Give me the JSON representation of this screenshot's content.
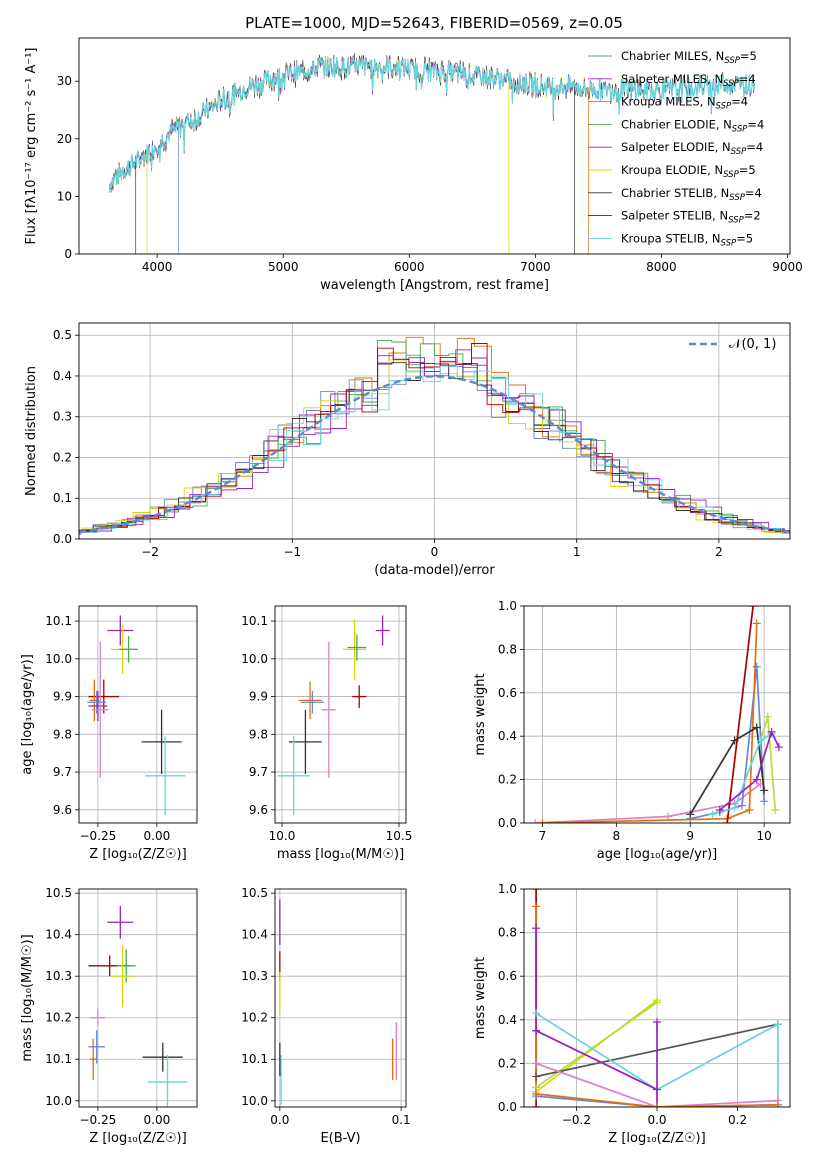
{
  "title": "PLATE=1000, MJD=52643, FIBERID=0569, z=0.05",
  "colors": {
    "Chabrier MILES": "#6688dd",
    "Salpeter MILES": "#9922bb",
    "Kroupa MILES": "#e07010",
    "Chabrier ELODIE": "#44aa44",
    "Salpeter ELODIE": "#9922bb",
    "Kroupa ELODIE": "#d8d800",
    "Chabrier STELIB": "#333333",
    "Salpeter STELIB": "#aa0000",
    "Kroupa STELIB": "#66d4dd",
    "pink": "#e080c0",
    "olive": "#b8d84a",
    "gray": "#555555",
    "normal": "#5b87d6"
  },
  "chart_data": [
    {
      "id": "spectrum",
      "type": "line",
      "title": "PLATE=1000, MJD=52643, FIBERID=0569, z=0.05",
      "xlabel": "wavelength [Angstrom, rest frame]",
      "ylabel": "Flux [fλ10⁻¹⁷ erg cm⁻² s⁻¹ A⁻¹]",
      "xlim": [
        3380,
        9020
      ],
      "ylim": [
        0,
        37.5
      ],
      "xticks": [
        "4000",
        "5000",
        "6000",
        "7000",
        "8000",
        "9000"
      ],
      "yticks": [
        "0",
        "10",
        "20",
        "30"
      ],
      "legend_position": "upper right",
      "series": [
        {
          "name": "Chabrier MILES",
          "nssp": "5"
        },
        {
          "name": "Salpeter MILES",
          "nssp": "4"
        },
        {
          "name": "Kroupa MILES",
          "nssp": "4"
        },
        {
          "name": "Chabrier ELODIE",
          "nssp": "4"
        },
        {
          "name": "Salpeter ELODIE",
          "nssp": "4"
        },
        {
          "name": "Kroupa ELODIE",
          "nssp": "5"
        },
        {
          "name": "Chabrier STELIB",
          "nssp": "4"
        },
        {
          "name": "Salpeter STELIB",
          "nssp": "2"
        },
        {
          "name": "Kroupa STELIB",
          "nssp": "5"
        }
      ],
      "continuum": {
        "x": [
          3620,
          3700,
          3800,
          3900,
          4000,
          4100,
          4200,
          4300,
          4400,
          4500,
          4600,
          4700,
          4800,
          4900,
          5000,
          5100,
          5200,
          5300,
          5500,
          5700,
          5900,
          6100,
          6300,
          6500,
          6700,
          6900,
          7100,
          7300,
          7500,
          7700,
          7900,
          8100,
          8300,
          8500,
          8700
        ],
        "y": [
          12,
          14,
          15.5,
          17,
          19,
          21,
          22.5,
          23.5,
          25,
          26.5,
          27.5,
          29,
          29.5,
          30.5,
          31,
          31.5,
          32,
          32.5,
          32.5,
          32.5,
          32.5,
          32,
          31.5,
          31,
          30.5,
          29.5,
          29,
          29,
          28.5,
          28.5,
          28.5,
          28.5,
          29,
          29.5,
          29.5
        ]
      }
    },
    {
      "id": "residuals",
      "type": "line",
      "xlabel": "(data-model)/error",
      "ylabel": "Normed distribution",
      "xlim": [
        -2.5,
        2.5
      ],
      "ylim": [
        0,
        0.53
      ],
      "xticks": [
        "−2",
        "−1",
        "0",
        "1",
        "2"
      ],
      "yticks": [
        "0.0",
        "0.1",
        "0.2",
        "0.3",
        "0.4",
        "0.5"
      ],
      "legend": "𝒩(0, 1)",
      "series": [
        {
          "name": "Chabrier MILES",
          "peak": 0.43
        },
        {
          "name": "Salpeter MILES",
          "peak": 0.46
        },
        {
          "name": "Kroupa MILES",
          "peak": 0.5
        },
        {
          "name": "Chabrier ELODIE",
          "peak": 0.49
        },
        {
          "name": "Salpeter ELODIE",
          "peak": 0.47
        },
        {
          "name": "Kroupa ELODIE",
          "peak": 0.45
        },
        {
          "name": "Chabrier STELIB",
          "peak": 0.44
        },
        {
          "name": "Salpeter STELIB",
          "peak": 0.48
        },
        {
          "name": "Kroupa STELIB",
          "peak": 0.42
        }
      ]
    },
    {
      "id": "age_vs_Z",
      "type": "scatter",
      "xlabel": "Z [log₁₀(Z/Z☉)]",
      "ylabel": "age  [log₁₀(age/yr)]",
      "xlim": [
        -0.33,
        0.17
      ],
      "ylim": [
        9.565,
        10.14
      ],
      "xticks": [
        "−0.25",
        "0.00"
      ],
      "yticks": [
        "9.6",
        "9.7",
        "9.8",
        "9.9",
        "10.0",
        "10.1"
      ],
      "points": [
        {
          "series": "Salpeter ELODIE",
          "x": -0.155,
          "y": 10.075,
          "xe": 0.055,
          "ye": 0.04
        },
        {
          "series": "Kroupa ELODIE",
          "x": -0.145,
          "y": 10.025,
          "xe": 0.05,
          "ye": 0.065
        },
        {
          "series": "Chabrier ELODIE",
          "x": -0.12,
          "y": 10.025,
          "xe": 0.04,
          "ye": 0.035
        },
        {
          "series": "Salpeter STELIB",
          "x": -0.225,
          "y": 9.9,
          "xe": 0.065,
          "ye": 0.045
        },
        {
          "series": "Kroupa MILES",
          "x": -0.265,
          "y": 9.89,
          "xe": 0.02,
          "ye": 0.055
        },
        {
          "series": "Chabrier MILES",
          "x": -0.255,
          "y": 9.885,
          "xe": 0.04,
          "ye": 0.03
        },
        {
          "series": "Salpeter MILES",
          "x": -0.25,
          "y": 9.875,
          "xe": 0.04,
          "ye": 0.04
        },
        {
          "series": "pink",
          "x": -0.24,
          "y": 9.865,
          "xe": 0.035,
          "ye": 0.18
        },
        {
          "series": "Chabrier STELIB",
          "x": 0.02,
          "y": 9.78,
          "xe": 0.085,
          "ye": 0.085
        },
        {
          "series": "Kroupa STELIB",
          "x": 0.035,
          "y": 9.69,
          "xe": 0.085,
          "ye": 0.105
        }
      ]
    },
    {
      "id": "age_vs_mass",
      "type": "scatter",
      "xlabel": "mass [log₁₀(M/M☉)]",
      "xlim": [
        9.97,
        10.53
      ],
      "ylim": [
        9.565,
        10.14
      ],
      "xticks": [
        "10.0",
        "10.5"
      ],
      "yticks": [
        "9.6",
        "9.7",
        "9.8",
        "9.9",
        "10.0",
        "10.1"
      ],
      "points": [
        {
          "series": "Salpeter ELODIE",
          "x": 10.43,
          "y": 10.075,
          "xe": 0.03,
          "ye": 0.04
        },
        {
          "series": "Kroupa ELODIE",
          "x": 10.31,
          "y": 10.025,
          "xe": 0.05,
          "ye": 0.08
        },
        {
          "series": "Chabrier ELODIE",
          "x": 10.32,
          "y": 10.03,
          "xe": 0.04,
          "ye": 0.035
        },
        {
          "series": "Salpeter STELIB",
          "x": 10.33,
          "y": 9.9,
          "xe": 0.03,
          "ye": 0.03
        },
        {
          "series": "Kroupa MILES",
          "x": 10.12,
          "y": 9.89,
          "xe": 0.05,
          "ye": 0.05
        },
        {
          "series": "Chabrier MILES",
          "x": 10.13,
          "y": 9.885,
          "xe": 0.05,
          "ye": 0.03
        },
        {
          "series": "pink",
          "x": 10.2,
          "y": 9.865,
          "xe": 0.03,
          "ye": 0.18
        },
        {
          "series": "Chabrier STELIB",
          "x": 10.1,
          "y": 9.78,
          "xe": 0.07,
          "ye": 0.085
        },
        {
          "series": "Kroupa STELIB",
          "x": 10.05,
          "y": 9.69,
          "xe": 0.07,
          "ye": 0.105
        }
      ]
    },
    {
      "id": "weight_vs_age",
      "type": "line",
      "xlabel": "age  [log₁₀(age/yr)]",
      "ylabel": "mass weight",
      "xlim": [
        6.75,
        10.35
      ],
      "ylim": [
        0,
        1
      ],
      "xticks": [
        "7",
        "8",
        "9",
        "10"
      ],
      "yticks": [
        "0.0",
        "0.2",
        "0.4",
        "0.6",
        "0.8",
        "1.0"
      ],
      "series": [
        {
          "name": "pink",
          "x": [
            6.9,
            8.7,
            9.6,
            9.95
          ],
          "y": [
            0.0,
            0.03,
            0.09,
            0.18
          ]
        },
        {
          "name": "Chabrier MILES",
          "x": [
            9.0,
            9.4,
            9.7,
            9.9,
            10.0
          ],
          "y": [
            0.02,
            0.05,
            0.08,
            0.72,
            0.1
          ]
        },
        {
          "name": "Kroupa MILES",
          "x": [
            7.0,
            9.5,
            9.8,
            9.9
          ],
          "y": [
            0.0,
            0.02,
            0.06,
            0.92
          ]
        },
        {
          "name": "Chabrier STELIB",
          "x": [
            9.0,
            9.6,
            9.9,
            10.0
          ],
          "y": [
            0.04,
            0.38,
            0.44,
            0.15
          ]
        },
        {
          "name": "Salpeter STELIB",
          "x": [
            9.5,
            9.85
          ],
          "y": [
            0.0,
            1.0
          ]
        },
        {
          "name": "olive",
          "x": [
            9.95,
            10.05,
            10.15
          ],
          "y": [
            0.38,
            0.49,
            0.06
          ]
        },
        {
          "name": "Kroupa STELIB",
          "x": [
            9.3,
            9.6,
            9.95,
            10.1
          ],
          "y": [
            0.04,
            0.07,
            0.38,
            0.41
          ]
        },
        {
          "name": "Salpeter MILES",
          "x": [
            9.4,
            9.9,
            10.1,
            10.2
          ],
          "y": [
            0.06,
            0.2,
            0.42,
            0.35
          ]
        }
      ]
    },
    {
      "id": "mass_vs_Z",
      "type": "scatter",
      "xlabel": "Z [log₁₀(Z/Z☉)]",
      "ylabel": "mass [log₁₀(M/M☉)]",
      "xlim": [
        -0.33,
        0.17
      ],
      "ylim": [
        9.985,
        10.51
      ],
      "xticks": [
        "−0.25",
        "0.00"
      ],
      "yticks": [
        "10.0",
        "10.1",
        "10.2",
        "10.3",
        "10.4",
        "10.5"
      ],
      "points": [
        {
          "series": "Salpeter ELODIE",
          "x": -0.155,
          "y": 10.43,
          "xe": 0.055,
          "ye": 0.04
        },
        {
          "series": "Salpeter STELIB",
          "x": -0.2,
          "y": 10.325,
          "xe": 0.09,
          "ye": 0.025
        },
        {
          "series": "Chabrier ELODIE",
          "x": -0.13,
          "y": 10.325,
          "xe": 0.04,
          "ye": 0.04
        },
        {
          "series": "Kroupa ELODIE",
          "x": -0.145,
          "y": 10.3,
          "xe": 0.05,
          "ye": 0.075
        },
        {
          "series": "pink",
          "x": -0.25,
          "y": 10.2,
          "xe": 0.03,
          "ye": 0.02
        },
        {
          "series": "Chabrier MILES",
          "x": -0.255,
          "y": 10.13,
          "xe": 0.035,
          "ye": 0.04
        },
        {
          "series": "Kroupa MILES",
          "x": -0.27,
          "y": 10.1,
          "xe": 0.015,
          "ye": 0.05
        },
        {
          "series": "Chabrier STELIB",
          "x": 0.025,
          "y": 10.105,
          "xe": 0.085,
          "ye": 0.035
        },
        {
          "series": "Kroupa STELIB",
          "x": 0.045,
          "y": 10.045,
          "xe": 0.085,
          "ye": 0.065
        }
      ]
    },
    {
      "id": "mass_vs_ebv",
      "type": "scatter",
      "xlabel": "E(B-V)",
      "xlim": [
        -0.004,
        0.104
      ],
      "ylim": [
        9.985,
        10.51
      ],
      "xticks": [
        "0.0",
        "0.1"
      ],
      "yticks": [
        "10.0",
        "10.1",
        "10.2",
        "10.3",
        "10.4",
        "10.5"
      ],
      "points": [
        {
          "series": "Salpeter ELODIE",
          "x": 0.0,
          "y": 10.43,
          "xe": 0.0,
          "ye": 0.055
        },
        {
          "series": "Salpeter STELIB",
          "x": 0.0,
          "y": 10.325,
          "xe": 0.0,
          "ye": 0.035
        },
        {
          "series": "Kroupa ELODIE",
          "x": 0.0,
          "y": 10.26,
          "xe": 0.0,
          "ye": 0.05
        },
        {
          "series": "Chabrier STELIB",
          "x": 0.0,
          "y": 10.1,
          "xe": 0.0,
          "ye": 0.04
        },
        {
          "series": "Kroupa STELIB",
          "x": 0.001,
          "y": 10.05,
          "xe": 0.0,
          "ye": 0.06
        },
        {
          "series": "Kroupa MILES",
          "x": 0.093,
          "y": 10.1,
          "xe": 0.0,
          "ye": 0.05
        },
        {
          "series": "pink",
          "x": 0.096,
          "y": 10.12,
          "xe": 0.0,
          "ye": 0.07
        }
      ]
    },
    {
      "id": "weight_vs_Z",
      "type": "line",
      "xlabel": "Z [log₁₀(Z/Z☉)]",
      "ylabel": "mass weight",
      "xlim": [
        -0.33,
        0.33
      ],
      "ylim": [
        0,
        1
      ],
      "xticks": [
        "−0.2",
        "0.0",
        "0.2"
      ],
      "yticks": [
        "0.0",
        "0.2",
        "0.4",
        "0.6",
        "0.8",
        "1.0"
      ],
      "series": [
        {
          "name": "Salpeter STELIB",
          "x": [
            -0.3,
            -0.3
          ],
          "y": [
            0.0,
            1.0
          ]
        },
        {
          "name": "Kroupa MILES",
          "x": [
            -0.3,
            -0.3
          ],
          "y": [
            0.06,
            0.92
          ]
        },
        {
          "name": "Salpeter MILES",
          "x": [
            -0.3,
            -0.3
          ],
          "y": [
            0.35,
            0.82
          ]
        },
        {
          "name": "Kroupa ELODIE",
          "x": [
            -0.3,
            0.0
          ],
          "y": [
            0.07,
            0.49
          ]
        },
        {
          "name": "olive",
          "x": [
            -0.3,
            0.0
          ],
          "y": [
            0.09,
            0.48
          ]
        },
        {
          "name": "gray",
          "x": [
            -0.3,
            0.3
          ],
          "y": [
            0.14,
            0.38
          ]
        },
        {
          "name": "Kroupa STELIB",
          "x": [
            -0.3,
            0.0,
            0.3,
            0.3
          ],
          "y": [
            0.43,
            0.08,
            0.38,
            0.0
          ]
        },
        {
          "name": "Salpeter MILES",
          "x": [
            -0.3,
            0.0
          ],
          "y": [
            0.35,
            0.08
          ]
        },
        {
          "name": "Salpeter ELODIE",
          "x": [
            0.0,
            0.0
          ],
          "y": [
            0.0,
            0.39
          ]
        },
        {
          "name": "pink",
          "x": [
            -0.3,
            0.0,
            0.3
          ],
          "y": [
            0.2,
            0.0,
            0.03
          ]
        },
        {
          "name": "Chabrier MILES",
          "x": [
            -0.3,
            0.0,
            0.3
          ],
          "y": [
            0.05,
            0.0,
            0.01
          ]
        },
        {
          "name": "Kroupa MILES",
          "x": [
            -0.3,
            0.0,
            0.3
          ],
          "y": [
            0.06,
            0.0,
            0.01
          ]
        }
      ]
    }
  ]
}
